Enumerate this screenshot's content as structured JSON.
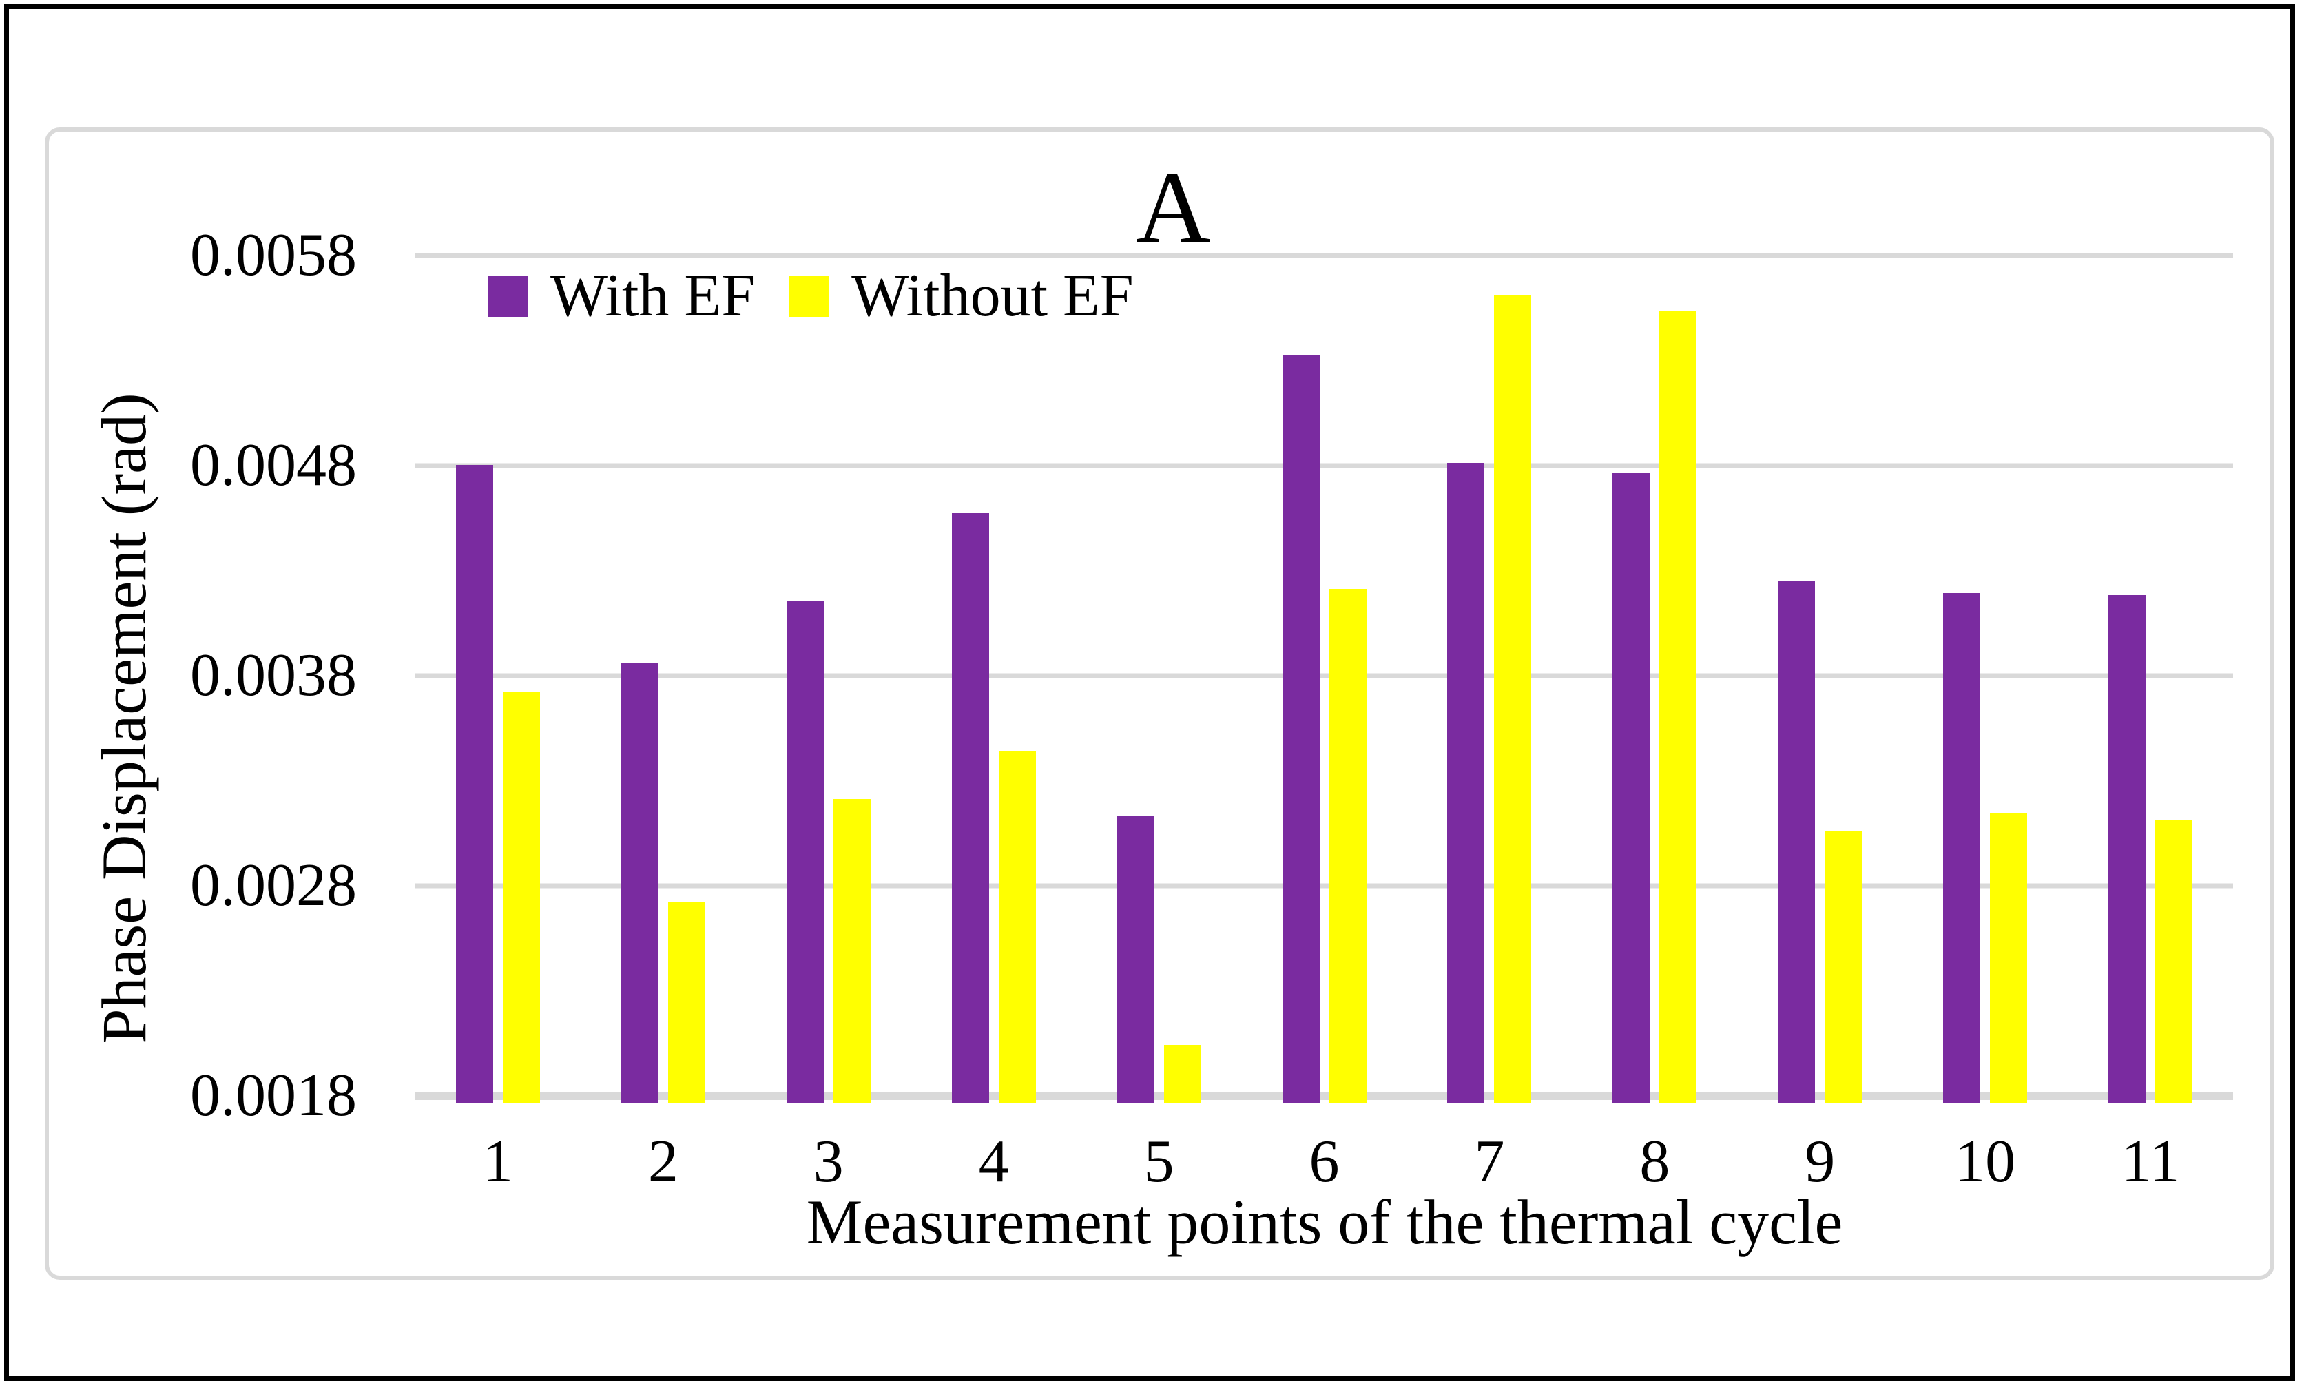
{
  "figure": {
    "background": "#FFFFFF",
    "outer_border_color": "#000000",
    "frame_border_color": "#D9D9D9"
  },
  "chart_data": {
    "type": "bar",
    "title": "A",
    "xlabel": "Measurement points of the thermal cycle",
    "ylabel": "Phase Displacement (rad)",
    "categories": [
      "1",
      "2",
      "3",
      "4",
      "5",
      "6",
      "7",
      "8",
      "9",
      "10",
      "11"
    ],
    "series": [
      {
        "name": "With EF",
        "color": "#7A2BA0",
        "values": [
          0.00481,
          0.00387,
          0.00416,
          0.00458,
          0.00314,
          0.00533,
          0.00482,
          0.00477,
          0.00426,
          0.0042,
          0.00419
        ]
      },
      {
        "name": "Without EF",
        "color": "#FFFF00",
        "values": [
          0.00373,
          0.00273,
          0.00322,
          0.00345,
          0.00205,
          0.00422,
          0.00562,
          0.00554,
          0.00307,
          0.00315,
          0.00312
        ]
      }
    ],
    "ylim": [
      0.0018,
      0.0058
    ],
    "ytick_step": 0.001,
    "yticks": [
      "0.0058",
      "0.0048",
      "0.0038",
      "0.0028",
      "0.0018"
    ],
    "grid": "horizontal",
    "gridline_color": "#D9D9D9",
    "legend_position": "inside-top-left"
  }
}
